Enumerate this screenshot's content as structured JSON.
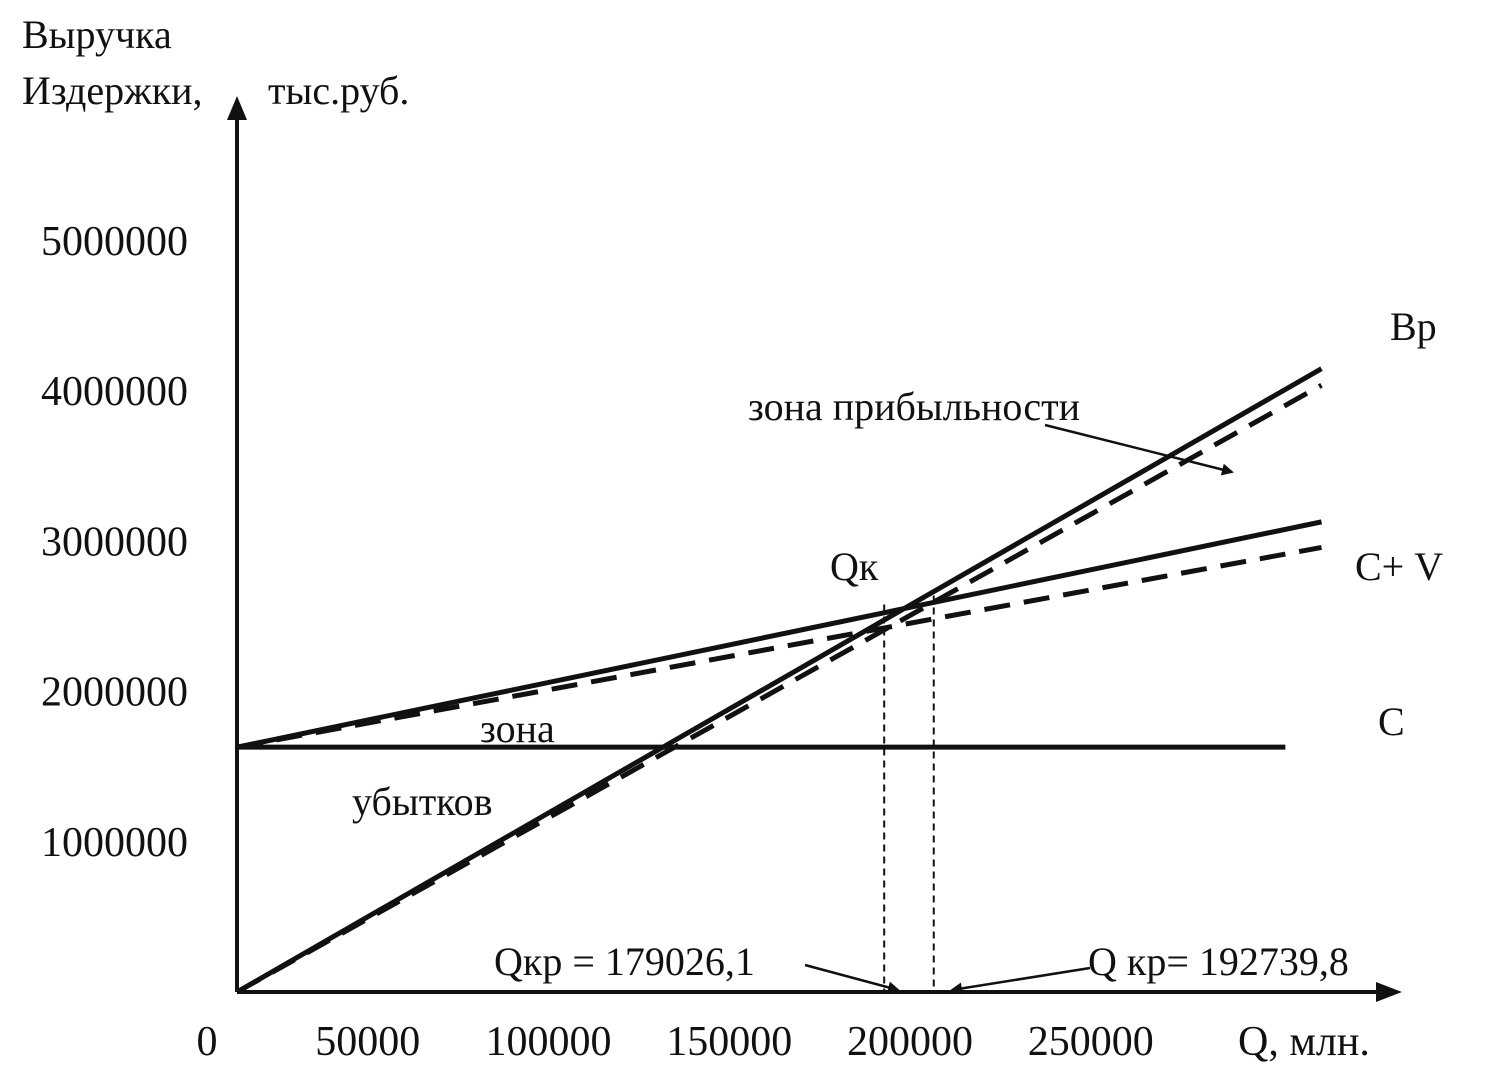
{
  "chart_data": {
    "type": "line",
    "title": "",
    "ylabel_line1": "Выручка",
    "ylabel_line2": "Издержки,",
    "yunit": "тыс.руб.",
    "xlabel": "Q,  млн.",
    "xlim": [
      0,
      300000
    ],
    "ylim": [
      0,
      5000000
    ],
    "x_ticks": [
      0,
      50000,
      100000,
      150000,
      200000,
      250000
    ],
    "x_tick_labels": [
      "0",
      "50000",
      "100000",
      "150000",
      "200000",
      "250000"
    ],
    "y_ticks": [
      1000000,
      2000000,
      3000000,
      4000000,
      5000000
    ],
    "y_tick_labels": [
      "1000000",
      "2000000",
      "3000000",
      "4000000",
      "5000000"
    ],
    "grid": false,
    "series": [
      {
        "name": "Вр",
        "style": "solid",
        "x": [
          0,
          300000
        ],
        "y": [
          0,
          4150000
        ]
      },
      {
        "name": "",
        "style": "dashed",
        "x": [
          0,
          300000
        ],
        "y": [
          0,
          4040000
        ]
      },
      {
        "name": "С+  V",
        "style": "solid",
        "x": [
          0,
          300000
        ],
        "y": [
          1630000,
          3130000
        ]
      },
      {
        "name": "",
        "style": "dashed",
        "x": [
          0,
          300000
        ],
        "y": [
          1630000,
          2960000
        ]
      },
      {
        "name": "С",
        "style": "solid",
        "x": [
          0,
          290000
        ],
        "y": [
          1630000,
          1630000
        ]
      }
    ],
    "breakeven_lines": [
      {
        "x": 179026.1,
        "y": 2580000
      },
      {
        "x": 192739.8,
        "y": 2640000
      }
    ],
    "annotations": {
      "profit_zone": "зона  прибыльности",
      "loss_zone_1": "зона",
      "loss_zone_2": "убытков",
      "qk": "Qк",
      "qkr1": "Qкр = 179026,1",
      "qkr2": "Q кр= 192739,8"
    }
  }
}
